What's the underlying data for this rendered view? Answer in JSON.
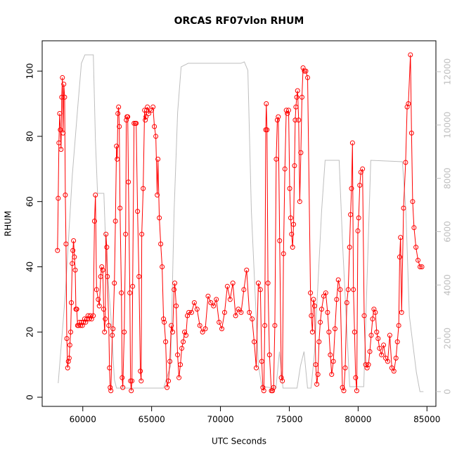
{
  "chart_data": {
    "type": "line",
    "title": "ORCAS RF07vlon RHUM",
    "x_label": "UTC Seconds",
    "y_label": "RHUM",
    "xlim": [
      57050,
      85650
    ],
    "ylim": [
      -2.8,
      109.3
    ],
    "y2lim": [
      -554,
      13160
    ],
    "xticks": [
      60000,
      65000,
      70000,
      75000,
      80000,
      85000
    ],
    "yticks": [
      0,
      20,
      40,
      60,
      80,
      100
    ],
    "y2ticks": [
      0,
      2000,
      4000,
      6000,
      8000,
      10000,
      12000
    ],
    "y2_color": "#bebebe",
    "series": [
      {
        "color": "#bebebe",
        "axis": "y2",
        "marker": "none",
        "x": [
          58214,
          58724,
          59235,
          59643,
          59898,
          60153,
          60765,
          60918,
          61071,
          61531,
          61684,
          62041,
          62296,
          62449,
          64082,
          65867,
          66378,
          66633,
          66888,
          67143,
          67653,
          71480,
          71735,
          71990,
          72245,
          72755,
          73010,
          74031,
          74286,
          74541,
          75561,
          75816,
          76071,
          76327,
          76582,
          76837,
          77347,
          77602,
          78622,
          78878,
          79133,
          79388,
          80408,
          80918,
          83214,
          83469,
          83724,
          84235,
          84490,
          84745
        ],
        "values": [
          316,
          3613,
          8096,
          10733,
          12315,
          12631,
          12631,
          9414,
          7436,
          7436,
          5195,
          2822,
          448,
          132,
          132,
          132,
          976,
          6777,
          10469,
          12183,
          12315,
          12315,
          12368,
          12051,
          6777,
          976,
          185,
          132,
          1503,
          132,
          132,
          976,
          1503,
          132,
          132,
          1503,
          6777,
          8676,
          8676,
          5459,
          2822,
          185,
          185,
          8676,
          8623,
          6777,
          2822,
          712,
          0,
          0
        ]
      },
      {
        "color": "#ff0000",
        "axis": "y",
        "marker": "circle",
        "x": [
          58163,
          58215,
          58265,
          58320,
          58370,
          58420,
          58470,
          58520,
          58570,
          58620,
          58680,
          58730,
          58780,
          58840,
          58900,
          58950,
          59010,
          59060,
          59120,
          59170,
          59230,
          59280,
          59330,
          59390,
          59450,
          59500,
          59560,
          59620,
          59690,
          59760,
          59830,
          59900,
          59970,
          60050,
          60130,
          60210,
          60300,
          60380,
          60460,
          60540,
          60640,
          60760,
          60850,
          60918,
          61000,
          61122,
          61200,
          61300,
          61377,
          61450,
          61520,
          61581,
          61630,
          61683,
          61740,
          61785,
          61887,
          61940,
          61989,
          62040,
          62142,
          62193,
          62295,
          62370,
          62448,
          62500,
          62550,
          62601,
          62652,
          62703,
          62805,
          62860,
          62907,
          63009,
          63111,
          63162,
          63210,
          63264,
          63315,
          63417,
          63468,
          63520,
          63570,
          63621,
          63723,
          63825,
          63876,
          63978,
          64080,
          64182,
          64240,
          64284,
          64386,
          64488,
          64541,
          64590,
          64641,
          64692,
          64794,
          64998,
          65100,
          65202,
          65304,
          65406,
          65457,
          65559,
          65661,
          65763,
          65865,
          65916,
          66018,
          66120,
          66222,
          66324,
          66426,
          66528,
          66630,
          66681,
          66783,
          66885,
          66987,
          67089,
          67191,
          67293,
          67395,
          67497,
          67599,
          67701,
          67900,
          68100,
          68300,
          68500,
          68700,
          68900,
          69100,
          69300,
          69500,
          69700,
          69900,
          70100,
          70300,
          70500,
          70700,
          70900,
          71100,
          71300,
          71500,
          71700,
          71900,
          72100,
          72300,
          72450,
          72600,
          72750,
          72900,
          73000,
          73080,
          73150,
          73220,
          73290,
          73330,
          73380,
          73450,
          73560,
          73700,
          73780,
          73860,
          73950,
          74050,
          74130,
          74200,
          74300,
          74420,
          74500,
          74580,
          74680,
          74780,
          74860,
          74950,
          75030,
          75100,
          75170,
          75240,
          75310,
          75380,
          75430,
          75480,
          75540,
          75600,
          75680,
          75760,
          75840,
          75920,
          76000,
          76100,
          76200,
          76330,
          76540,
          76600,
          76680,
          76760,
          76840,
          76920,
          77000,
          77080,
          77160,
          77250,
          77350,
          77500,
          77650,
          77780,
          77880,
          77980,
          78080,
          78200,
          78320,
          78440,
          78560,
          78700,
          78860,
          78960,
          79060,
          79180,
          79280,
          79380,
          79450,
          79520,
          79590,
          79660,
          79740,
          79820,
          79900,
          79980,
          80040,
          80120,
          80200,
          80320,
          80440,
          80550,
          80650,
          80750,
          80850,
          80950,
          81050,
          81150,
          81250,
          81350,
          81450,
          81550,
          81700,
          81850,
          82000,
          82150,
          82300,
          82450,
          82600,
          82750,
          82850,
          82950,
          83020,
          83080,
          83160,
          83300,
          83450,
          83560,
          83650,
          83800,
          83880,
          83960,
          84060,
          84200,
          84350,
          84500,
          84630
        ],
        "values": [
          45,
          61,
          78,
          87,
          82,
          76,
          92,
          98,
          81,
          96,
          92,
          62,
          47,
          18,
          9,
          11,
          12,
          16,
          20,
          29,
          41,
          45,
          48,
          43,
          39,
          27,
          27,
          22,
          22,
          23,
          22,
          23,
          22,
          23,
          24,
          23,
          24,
          25,
          24,
          25,
          24,
          25,
          54,
          62,
          33,
          30,
          28,
          37,
          40,
          39,
          27,
          20,
          24,
          50,
          46,
          37,
          22,
          9,
          3,
          2,
          19,
          21,
          35,
          54,
          77,
          73,
          87,
          89,
          83,
          58,
          32,
          6,
          3,
          20,
          50,
          85,
          86,
          86,
          66,
          32,
          5,
          2,
          5,
          34,
          84,
          84,
          84,
          57,
          37,
          8,
          5,
          50,
          64,
          88,
          85,
          86,
          88,
          89,
          87,
          88,
          89,
          83,
          80,
          62,
          73,
          55,
          47,
          40,
          24,
          23,
          17,
          3,
          5,
          11,
          22,
          20,
          33,
          35,
          28,
          13,
          6,
          10,
          15,
          17,
          20,
          19,
          25,
          26,
          26,
          29,
          27,
          22,
          20,
          21,
          31,
          29,
          28,
          30,
          23,
          21,
          26,
          34,
          30,
          35,
          25,
          27,
          26,
          33,
          39,
          26,
          24,
          17,
          9,
          35,
          33,
          11,
          3,
          2,
          22,
          82,
          90,
          82,
          35,
          13,
          2,
          2,
          3,
          22,
          73,
          85,
          86,
          48,
          6,
          5,
          44,
          70,
          88,
          87,
          88,
          64,
          55,
          50,
          46,
          53,
          71,
          85,
          89,
          92,
          94,
          85,
          60,
          75,
          92,
          101,
          100,
          100,
          98,
          32,
          25,
          20,
          30,
          28,
          10,
          4,
          7,
          17,
          23,
          27,
          31,
          32,
          26,
          20,
          13,
          7,
          11,
          21,
          30,
          36,
          33,
          3,
          2,
          9,
          29,
          33,
          46,
          56,
          64,
          78,
          33,
          20,
          6,
          2,
          51,
          55,
          65,
          69,
          70,
          25,
          10,
          9,
          10,
          14,
          19,
          24,
          27,
          26,
          20,
          18,
          15,
          13,
          16,
          12,
          11,
          19,
          9,
          8,
          12,
          17,
          22,
          43,
          49,
          26,
          58,
          72,
          89,
          90,
          105,
          81,
          60,
          52,
          46,
          42,
          40,
          40
        ]
      }
    ]
  }
}
